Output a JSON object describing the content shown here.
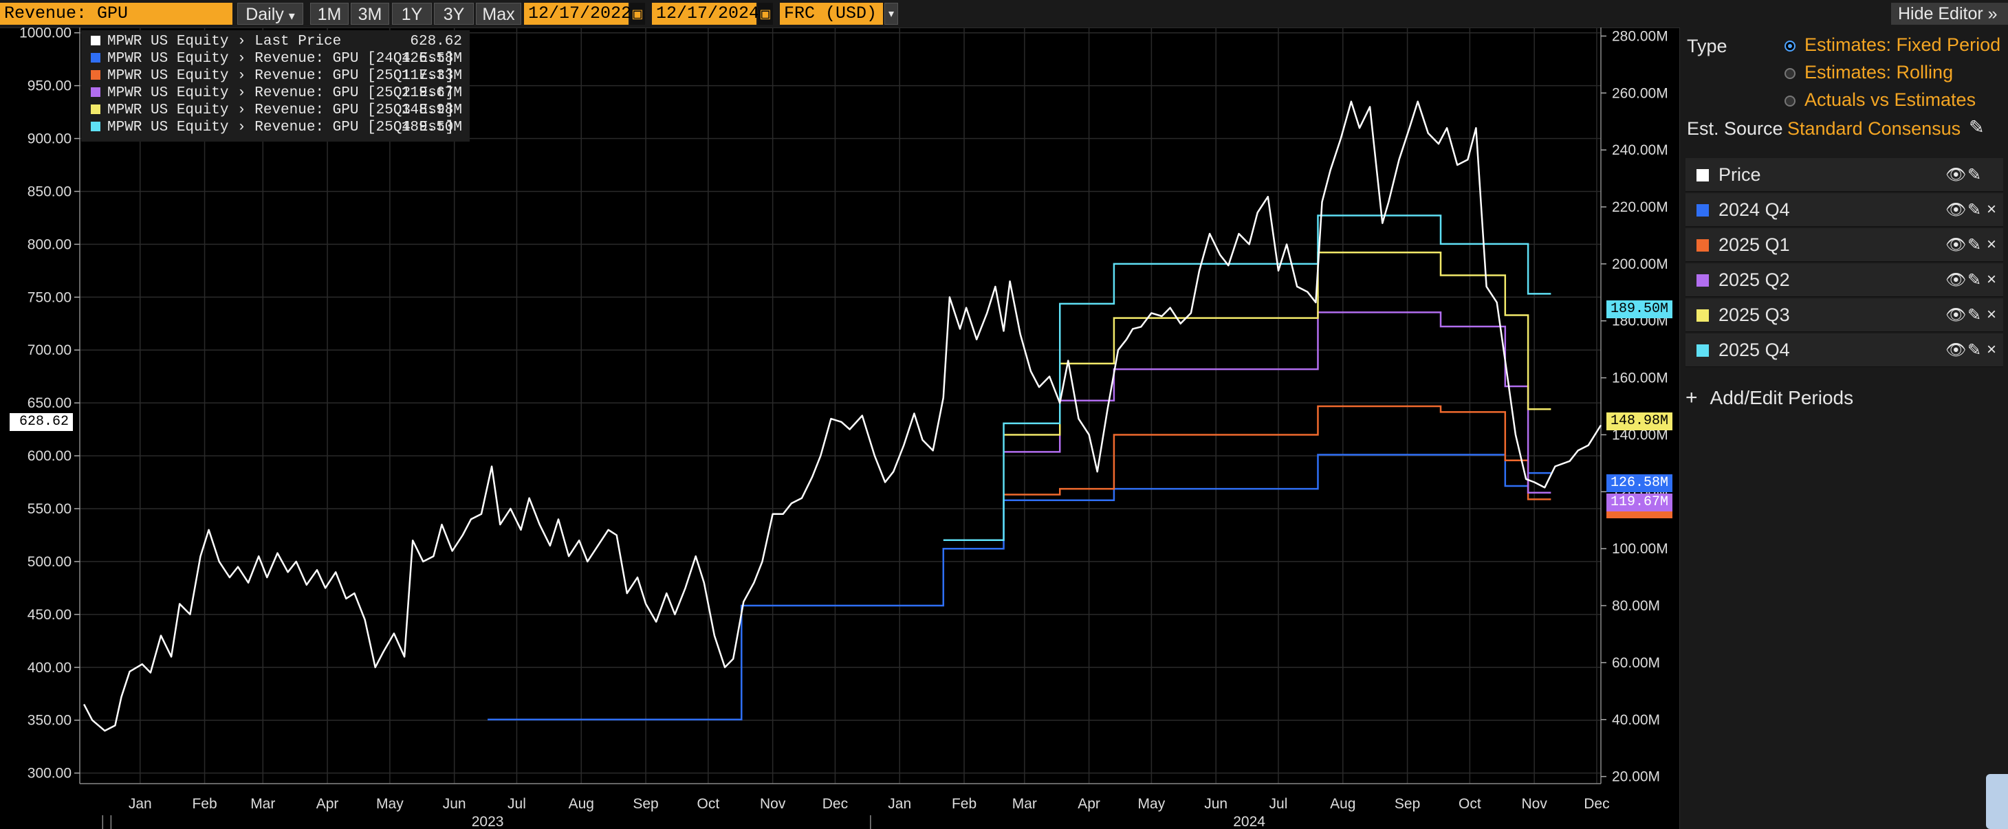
{
  "toolbar": {
    "field": "Revenue: GPU",
    "frequency": "Daily",
    "frequency_arrow": "▾",
    "ranges": [
      "1M",
      "3M",
      "1Y",
      "3Y",
      "Max"
    ],
    "start_date": "12/17/2022",
    "end_date": "12/17/2024",
    "currency": "FRC (USD)",
    "currency_arrow": "▾",
    "hide_editor": "Hide Editor",
    "hide_editor_icon": "»",
    "calendar_icon": "▣"
  },
  "legend": {
    "items": [
      {
        "label": "MPWR US Equity › Last Price",
        "value": "628.62",
        "color": "#ffffff"
      },
      {
        "label": "MPWR US Equity › Revenue: GPU [24Q4 Est]",
        "value": "126.58M",
        "color": "#2f6ff5"
      },
      {
        "label": "MPWR US Equity › Revenue: GPU [25Q1 Est]",
        "value": "117.33M",
        "color": "#f06a2e"
      },
      {
        "label": "MPWR US Equity › Revenue: GPU [25Q2 Est]",
        "value": "119.67M",
        "color": "#b26ef0"
      },
      {
        "label": "MPWR US Equity › Revenue: GPU [25Q3 Est]",
        "value": "148.98M",
        "color": "#f3ea6a"
      },
      {
        "label": "MPWR US Equity › Revenue: GPU [25Q4 Est]",
        "value": "189.50M",
        "color": "#5fe0f5"
      }
    ]
  },
  "flags": {
    "price": "628.62",
    "q4_25": "189.50M",
    "q3_25": "148.98M",
    "q4_24": "126.58M",
    "q2_25": "119.67M"
  },
  "editor": {
    "type_label": "Type",
    "type_options": [
      {
        "label": "Estimates: Fixed Period",
        "selected": true
      },
      {
        "label": "Estimates: Rolling",
        "selected": false
      },
      {
        "label": "Actuals vs Estimates",
        "selected": false
      }
    ],
    "source_label": "Est. Source",
    "source_value": "Standard Consensus",
    "series": [
      {
        "label": "Price",
        "color": "#ffffff",
        "removable": false
      },
      {
        "label": "2024 Q4",
        "color": "#2f6ff5",
        "removable": true
      },
      {
        "label": "2025 Q1",
        "color": "#f06a2e",
        "removable": true
      },
      {
        "label": "2025 Q2",
        "color": "#b26ef0",
        "removable": true
      },
      {
        "label": "2025 Q3",
        "color": "#f3ea6a",
        "removable": true
      },
      {
        "label": "2025 Q4",
        "color": "#5fe0f5",
        "removable": true
      }
    ],
    "eye_icon": "👁",
    "pencil_icon": "✎",
    "close_icon": "×",
    "add_periods": "Add/Edit Periods",
    "add_icon": "+"
  },
  "chart_data": {
    "type": "line",
    "x_range": [
      "2022-12-17",
      "2024-12-17"
    ],
    "month_ticks": [
      {
        "label": "Jan",
        "date": "2023-01-15"
      },
      {
        "label": "Feb",
        "date": "2023-02-15"
      },
      {
        "label": "Mar",
        "date": "2023-03-15"
      },
      {
        "label": "Apr",
        "date": "2023-04-15"
      },
      {
        "label": "May",
        "date": "2023-05-15"
      },
      {
        "label": "Jun",
        "date": "2023-06-15"
      },
      {
        "label": "Jul",
        "date": "2023-07-15"
      },
      {
        "label": "Aug",
        "date": "2023-08-15"
      },
      {
        "label": "Sep",
        "date": "2023-09-15"
      },
      {
        "label": "Oct",
        "date": "2023-10-15"
      },
      {
        "label": "Nov",
        "date": "2023-11-15"
      },
      {
        "label": "Dec",
        "date": "2023-12-15"
      },
      {
        "label": "Jan",
        "date": "2024-01-15"
      },
      {
        "label": "Feb",
        "date": "2024-02-15"
      },
      {
        "label": "Mar",
        "date": "2024-03-15"
      },
      {
        "label": "Apr",
        "date": "2024-04-15"
      },
      {
        "label": "May",
        "date": "2024-05-15"
      },
      {
        "label": "Jun",
        "date": "2024-06-15"
      },
      {
        "label": "Jul",
        "date": "2024-07-15"
      },
      {
        "label": "Aug",
        "date": "2024-08-15"
      },
      {
        "label": "Sep",
        "date": "2024-09-15"
      },
      {
        "label": "Oct",
        "date": "2024-10-15"
      },
      {
        "label": "Nov",
        "date": "2024-11-15"
      },
      {
        "label": "Dec",
        "date": "2024-12-15"
      }
    ],
    "year_ticks": [
      {
        "label": "2023",
        "date": "2023-07-01"
      },
      {
        "label": "2024",
        "date": "2024-07-01"
      }
    ],
    "year_boundaries": [
      "2023-01-01",
      "2024-01-01"
    ],
    "left_axis": {
      "ylim": [
        290,
        1005
      ],
      "ticks": [
        300,
        350,
        400,
        450,
        500,
        550,
        600,
        650,
        700,
        750,
        800,
        850,
        900,
        950,
        1000
      ],
      "tick_labels": [
        "300.00",
        "350.00",
        "400.00",
        "450.00",
        "500.00",
        "550.00",
        "600.00",
        "650.00",
        "700.00",
        "750.00",
        "800.00",
        "850.00",
        "900.00",
        "950.00",
        "1000.00"
      ]
    },
    "right_axis": {
      "ylim": [
        17.5,
        283
      ],
      "ticks": [
        20,
        40,
        60,
        80,
        100,
        120,
        140,
        160,
        180,
        200,
        220,
        240,
        260,
        280
      ],
      "tick_labels": [
        "20.00M",
        "40.00M",
        "60.00M",
        "80.00M",
        "100.00M",
        "120.00M",
        "140.00M",
        "160.00M",
        "180.00M",
        "200.00M",
        "220.00M",
        "240.00M",
        "260.00M",
        "280.00M"
      ]
    },
    "price_series": {
      "name": "MPWR US Equity › Last Price",
      "color": "#ffffff",
      "points": [
        [
          "2022-12-19",
          365
        ],
        [
          "2022-12-23",
          350
        ],
        [
          "2022-12-29",
          340
        ],
        [
          "2023-01-03",
          345
        ],
        [
          "2023-01-06",
          372
        ],
        [
          "2023-01-10",
          396
        ],
        [
          "2023-01-16",
          403
        ],
        [
          "2023-01-20",
          395
        ],
        [
          "2023-01-25",
          430
        ],
        [
          "2023-01-30",
          410
        ],
        [
          "2023-02-03",
          460
        ],
        [
          "2023-02-08",
          450
        ],
        [
          "2023-02-13",
          505
        ],
        [
          "2023-02-17",
          530
        ],
        [
          "2023-02-22",
          500
        ],
        [
          "2023-02-27",
          485
        ],
        [
          "2023-03-03",
          495
        ],
        [
          "2023-03-08",
          480
        ],
        [
          "2023-03-13",
          505
        ],
        [
          "2023-03-17",
          485
        ],
        [
          "2023-03-22",
          508
        ],
        [
          "2023-03-27",
          490
        ],
        [
          "2023-03-31",
          500
        ],
        [
          "2023-04-05",
          478
        ],
        [
          "2023-04-10",
          492
        ],
        [
          "2023-04-14",
          475
        ],
        [
          "2023-04-19",
          490
        ],
        [
          "2023-04-24",
          465
        ],
        [
          "2023-04-28",
          470
        ],
        [
          "2023-05-03",
          445
        ],
        [
          "2023-05-08",
          400
        ],
        [
          "2023-05-12",
          415
        ],
        [
          "2023-05-17",
          432
        ],
        [
          "2023-05-22",
          410
        ],
        [
          "2023-05-26",
          520
        ],
        [
          "2023-05-31",
          500
        ],
        [
          "2023-06-05",
          505
        ],
        [
          "2023-06-09",
          535
        ],
        [
          "2023-06-14",
          510
        ],
        [
          "2023-06-19",
          525
        ],
        [
          "2023-06-23",
          540
        ],
        [
          "2023-06-28",
          545
        ],
        [
          "2023-07-03",
          590
        ],
        [
          "2023-07-07",
          535
        ],
        [
          "2023-07-12",
          550
        ],
        [
          "2023-07-17",
          530
        ],
        [
          "2023-07-21",
          560
        ],
        [
          "2023-07-26",
          535
        ],
        [
          "2023-07-31",
          515
        ],
        [
          "2023-08-04",
          540
        ],
        [
          "2023-08-09",
          505
        ],
        [
          "2023-08-14",
          520
        ],
        [
          "2023-08-18",
          500
        ],
        [
          "2023-08-23",
          515
        ],
        [
          "2023-08-28",
          530
        ],
        [
          "2023-09-01",
          525
        ],
        [
          "2023-09-06",
          470
        ],
        [
          "2023-09-11",
          485
        ],
        [
          "2023-09-15",
          460
        ],
        [
          "2023-09-20",
          443
        ],
        [
          "2023-09-25",
          470
        ],
        [
          "2023-09-29",
          450
        ],
        [
          "2023-10-04",
          475
        ],
        [
          "2023-10-09",
          505
        ],
        [
          "2023-10-13",
          480
        ],
        [
          "2023-10-18",
          430
        ],
        [
          "2023-10-23",
          400
        ],
        [
          "2023-10-27",
          408
        ],
        [
          "2023-11-01",
          462
        ],
        [
          "2023-11-06",
          480
        ],
        [
          "2023-11-10",
          500
        ],
        [
          "2023-11-15",
          545
        ],
        [
          "2023-11-20",
          545
        ],
        [
          "2023-11-24",
          555
        ],
        [
          "2023-11-29",
          560
        ],
        [
          "2023-12-04",
          580
        ],
        [
          "2023-12-08",
          600
        ],
        [
          "2023-12-13",
          635
        ],
        [
          "2023-12-18",
          632
        ],
        [
          "2023-12-22",
          625
        ],
        [
          "2023-12-28",
          638
        ],
        [
          "2024-01-03",
          600
        ],
        [
          "2024-01-08",
          575
        ],
        [
          "2024-01-12",
          585
        ],
        [
          "2024-01-17",
          610
        ],
        [
          "2024-01-22",
          640
        ],
        [
          "2024-01-26",
          615
        ],
        [
          "2024-01-31",
          605
        ],
        [
          "2024-02-05",
          655
        ],
        [
          "2024-02-08",
          750
        ],
        [
          "2024-02-13",
          720
        ],
        [
          "2024-02-16",
          740
        ],
        [
          "2024-02-21",
          710
        ],
        [
          "2024-02-26",
          735
        ],
        [
          "2024-03-01",
          760
        ],
        [
          "2024-03-05",
          718
        ],
        [
          "2024-03-08",
          765
        ],
        [
          "2024-03-13",
          715
        ],
        [
          "2024-03-18",
          680
        ],
        [
          "2024-03-22",
          665
        ],
        [
          "2024-03-27",
          675
        ],
        [
          "2024-04-01",
          650
        ],
        [
          "2024-04-05",
          690
        ],
        [
          "2024-04-10",
          635
        ],
        [
          "2024-04-15",
          620
        ],
        [
          "2024-04-19",
          585
        ],
        [
          "2024-04-24",
          645
        ],
        [
          "2024-04-29",
          700
        ],
        [
          "2024-05-03",
          710
        ],
        [
          "2024-05-06",
          720
        ],
        [
          "2024-05-10",
          722
        ],
        [
          "2024-05-15",
          735
        ],
        [
          "2024-05-20",
          732
        ],
        [
          "2024-05-24",
          740
        ],
        [
          "2024-05-29",
          725
        ],
        [
          "2024-06-03",
          735
        ],
        [
          "2024-06-07",
          775
        ],
        [
          "2024-06-12",
          810
        ],
        [
          "2024-06-17",
          790
        ],
        [
          "2024-06-21",
          780
        ],
        [
          "2024-06-26",
          810
        ],
        [
          "2024-07-01",
          800
        ],
        [
          "2024-07-05",
          830
        ],
        [
          "2024-07-10",
          845
        ],
        [
          "2024-07-15",
          775
        ],
        [
          "2024-07-19",
          800
        ],
        [
          "2024-07-24",
          760
        ],
        [
          "2024-07-29",
          755
        ],
        [
          "2024-08-02",
          745
        ],
        [
          "2024-08-05",
          840
        ],
        [
          "2024-08-09",
          870
        ],
        [
          "2024-08-14",
          900
        ],
        [
          "2024-08-19",
          935
        ],
        [
          "2024-08-23",
          910
        ],
        [
          "2024-08-28",
          930
        ],
        [
          "2024-09-03",
          820
        ],
        [
          "2024-09-06",
          840
        ],
        [
          "2024-09-11",
          880
        ],
        [
          "2024-09-16",
          910
        ],
        [
          "2024-09-20",
          935
        ],
        [
          "2024-09-25",
          905
        ],
        [
          "2024-09-30",
          895
        ],
        [
          "2024-10-04",
          910
        ],
        [
          "2024-10-09",
          875
        ],
        [
          "2024-10-14",
          880
        ],
        [
          "2024-10-18",
          910
        ],
        [
          "2024-10-23",
          760
        ],
        [
          "2024-10-28",
          745
        ],
        [
          "2024-11-01",
          690
        ],
        [
          "2024-11-06",
          620
        ],
        [
          "2024-11-11",
          578
        ],
        [
          "2024-11-15",
          575
        ],
        [
          "2024-11-20",
          570
        ],
        [
          "2024-11-25",
          590
        ],
        [
          "2024-12-02",
          595
        ],
        [
          "2024-12-06",
          605
        ],
        [
          "2024-12-11",
          610
        ],
        [
          "2024-12-17",
          629
        ]
      ]
    },
    "estimate_series": [
      {
        "name": "2024 Q4",
        "color": "#2f6ff5",
        "steps": [
          [
            "2023-07-01",
            40
          ],
          [
            "2023-10-31",
            80
          ],
          [
            "2024-02-05",
            100
          ],
          [
            "2024-03-05",
            117
          ],
          [
            "2024-04-27",
            121
          ],
          [
            "2024-08-03",
            133
          ],
          [
            "2024-11-01",
            122
          ],
          [
            "2024-11-12",
            126.58
          ]
        ]
      },
      {
        "name": "2025 Q1",
        "color": "#f06a2e",
        "steps": [
          [
            "2024-03-05",
            119
          ],
          [
            "2024-04-01",
            121
          ],
          [
            "2024-04-27",
            140
          ],
          [
            "2024-08-03",
            150
          ],
          [
            "2024-10-01",
            148
          ],
          [
            "2024-11-01",
            131
          ],
          [
            "2024-11-12",
            117.33
          ]
        ]
      },
      {
        "name": "2025 Q2",
        "color": "#b26ef0",
        "steps": [
          [
            "2024-03-05",
            134
          ],
          [
            "2024-04-01",
            152
          ],
          [
            "2024-04-27",
            163
          ],
          [
            "2024-08-03",
            183
          ],
          [
            "2024-10-01",
            178
          ],
          [
            "2024-11-01",
            157
          ],
          [
            "2024-11-12",
            119.67
          ]
        ]
      },
      {
        "name": "2025 Q3",
        "color": "#f3ea6a",
        "steps": [
          [
            "2024-03-05",
            140
          ],
          [
            "2024-04-01",
            165
          ],
          [
            "2024-04-27",
            181
          ],
          [
            "2024-08-03",
            204
          ],
          [
            "2024-10-01",
            196
          ],
          [
            "2024-11-01",
            182
          ],
          [
            "2024-11-12",
            148.98
          ]
        ]
      },
      {
        "name": "2025 Q4",
        "color": "#5fe0f5",
        "steps": [
          [
            "2024-02-05",
            103
          ],
          [
            "2024-03-05",
            144
          ],
          [
            "2024-04-01",
            186
          ],
          [
            "2024-04-27",
            200
          ],
          [
            "2024-08-03",
            217
          ],
          [
            "2024-10-01",
            207
          ],
          [
            "2024-11-12",
            189.5
          ]
        ]
      }
    ]
  }
}
